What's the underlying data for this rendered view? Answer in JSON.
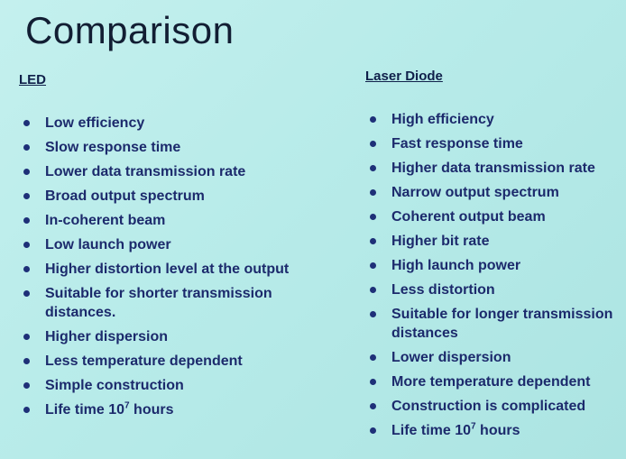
{
  "slide": {
    "title": "Comparison",
    "led": {
      "heading": "LED",
      "items": [
        {
          "text": "Low efficiency"
        },
        {
          "text": "Slow response time"
        },
        {
          "text": "Lower data transmission rate"
        },
        {
          "text": "Broad output spectrum"
        },
        {
          "text": "In-coherent beam"
        },
        {
          "text": "Low launch power"
        },
        {
          "text": "Higher distortion level at the output"
        },
        {
          "text": "Suitable for shorter transmission distances."
        },
        {
          "text": "Higher dispersion"
        },
        {
          "text": "Less temperature dependent"
        },
        {
          "text": "Simple construction"
        },
        {
          "text": "Life time 10",
          "sup": "7",
          "suffix": " hours"
        }
      ]
    },
    "laser": {
      "heading": "Laser Diode",
      "items": [
        {
          "text": "High efficiency"
        },
        {
          "text": "Fast response time"
        },
        {
          "text": "Higher data transmission rate"
        },
        {
          "text": "Narrow output spectrum"
        },
        {
          "text": "Coherent output beam"
        },
        {
          "text": "Higher bit rate"
        },
        {
          "text": "High launch power"
        },
        {
          "text": "Less distortion"
        },
        {
          "text": "Suitable for longer transmission distances"
        },
        {
          "text": "Lower dispersion"
        },
        {
          "text": "More temperature dependent"
        },
        {
          "text": "Construction is complicated"
        },
        {
          "text": "Life time 10",
          "sup": "7",
          "suffix": " hours"
        }
      ]
    }
  }
}
